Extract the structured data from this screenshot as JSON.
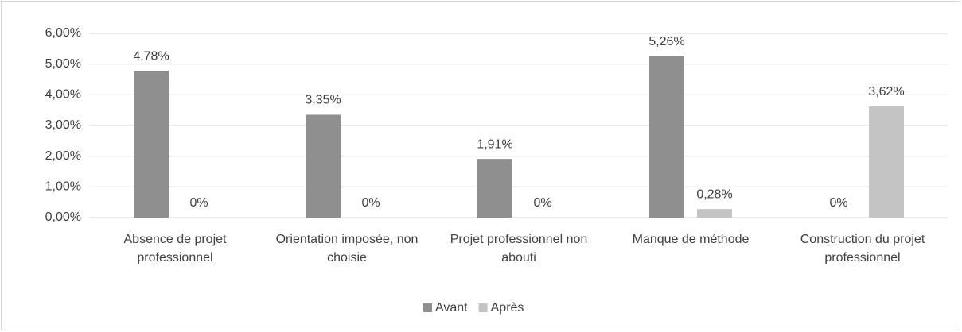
{
  "chart_data": {
    "type": "bar",
    "categories": [
      "Absence de projet professionnel",
      "Orientation imposée, non choisie",
      "Projet professionnel non abouti",
      "Manque de méthode",
      "Construction du projet professionnel"
    ],
    "series": [
      {
        "name": "Avant",
        "color": "#8f8f8f",
        "values": [
          4.78,
          3.35,
          1.91,
          5.26,
          0
        ],
        "value_labels": [
          "4,78%",
          "3,35%",
          "1,91%",
          "5,26%",
          "0%"
        ]
      },
      {
        "name": "Après",
        "color": "#c3c3c3",
        "values": [
          0,
          0,
          0,
          0.28,
          3.62
        ],
        "value_labels": [
          "0%",
          "0%",
          "0%",
          "0,28%",
          "3,62%"
        ]
      }
    ],
    "ylim": [
      0,
      6
    ],
    "yticks": [
      {
        "value": 0,
        "label": "0,00%"
      },
      {
        "value": 1,
        "label": "1,00%"
      },
      {
        "value": 2,
        "label": "2,00%"
      },
      {
        "value": 3,
        "label": "3,00%"
      },
      {
        "value": 4,
        "label": "4,00%"
      },
      {
        "value": 5,
        "label": "5,00%"
      },
      {
        "value": 6,
        "label": "6,00%"
      }
    ],
    "grid": true,
    "legend": "bottom"
  }
}
